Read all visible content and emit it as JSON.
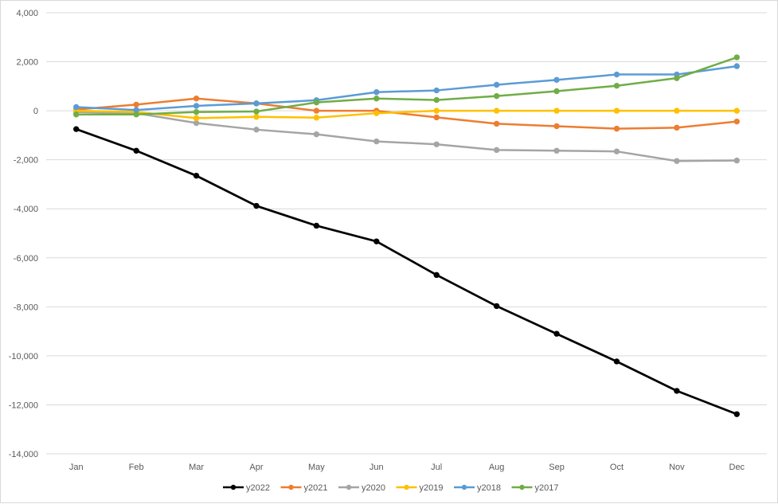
{
  "chart_data": {
    "type": "line",
    "title": "",
    "xlabel": "",
    "ylabel": "",
    "categories": [
      "Jan",
      "Feb",
      "Mar",
      "Apr",
      "May",
      "Jun",
      "Jul",
      "Aug",
      "Sep",
      "Oct",
      "Nov",
      "Dec"
    ],
    "ylim": [
      -14000,
      4000
    ],
    "yticks": [
      4000,
      2000,
      0,
      -2000,
      -4000,
      -6000,
      -8000,
      -10000,
      -12000,
      -14000
    ],
    "ytick_labels": [
      "4,000",
      "2,000",
      "0",
      "-2,000",
      "-4,000",
      "-6,000",
      "-8,000",
      "-10,000",
      "-12,000",
      "-14,000"
    ],
    "grid": true,
    "legend_position": "bottom",
    "series": [
      {
        "name": "y2022",
        "color": "#000000",
        "values": [
          -750,
          -1630,
          -2650,
          -3880,
          -4690,
          -5330,
          -6700,
          -7970,
          -9100,
          -10230,
          -11430,
          -12380
        ]
      },
      {
        "name": "y2021",
        "color": "#ED7D31",
        "values": [
          50,
          250,
          500,
          300,
          0,
          0,
          -270,
          -530,
          -630,
          -730,
          -690,
          -440
        ]
      },
      {
        "name": "y2020",
        "color": "#A5A5A5",
        "values": [
          -50,
          -100,
          -500,
          -770,
          -960,
          -1250,
          -1370,
          -1600,
          -1630,
          -1660,
          -2050,
          -2030
        ]
      },
      {
        "name": "y2019",
        "color": "#FFC000",
        "values": [
          0,
          -50,
          -300,
          -250,
          -280,
          -100,
          0,
          0,
          0,
          0,
          0,
          0
        ]
      },
      {
        "name": "y2018",
        "color": "#5B9BD5",
        "values": [
          150,
          30,
          200,
          300,
          430,
          760,
          830,
          1060,
          1260,
          1480,
          1480,
          1820
        ]
      },
      {
        "name": "y2017",
        "color": "#70AD47",
        "values": [
          -150,
          -150,
          -50,
          -30,
          340,
          500,
          440,
          600,
          800,
          1020,
          1330,
          2180
        ]
      }
    ]
  }
}
